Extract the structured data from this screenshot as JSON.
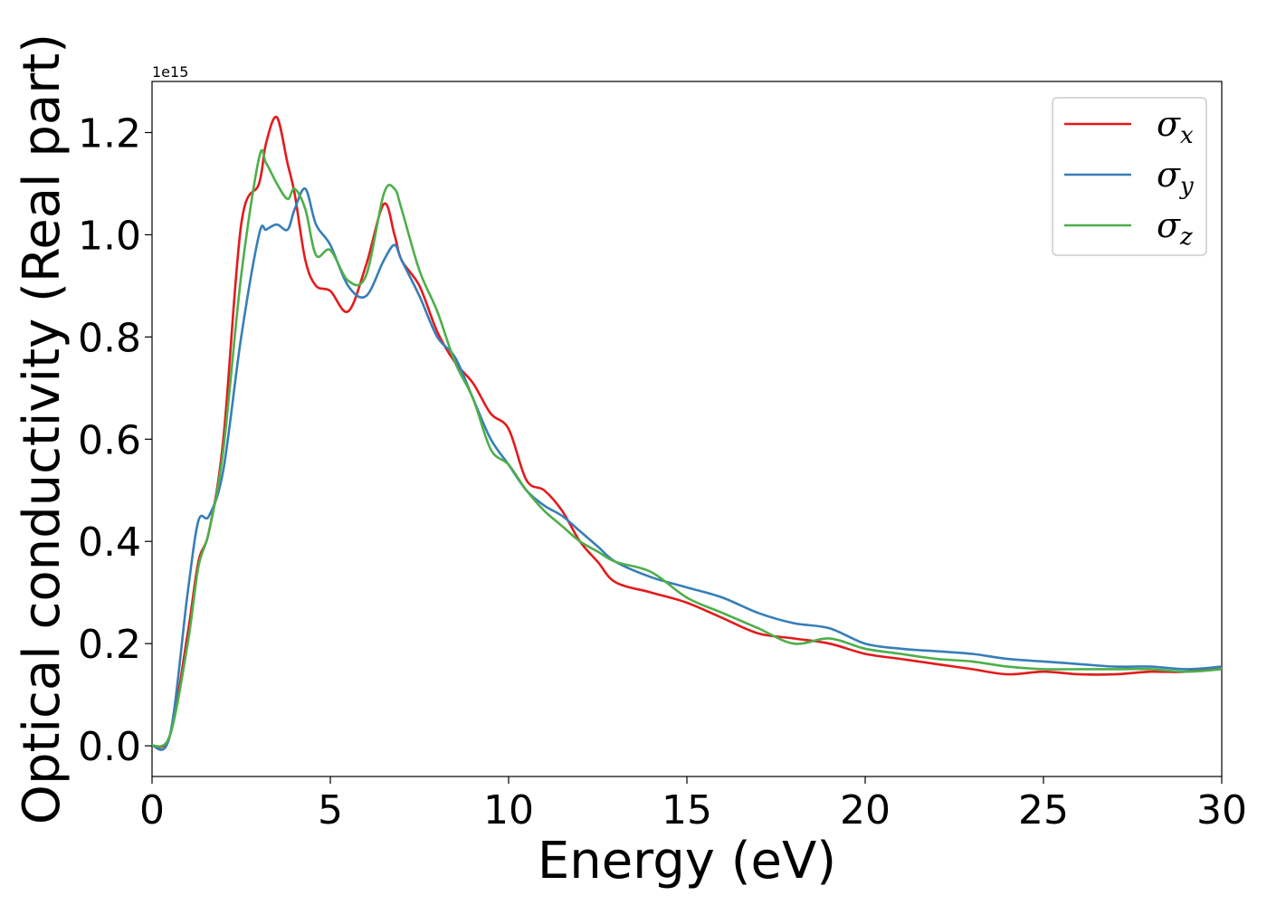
{
  "chart_data": {
    "type": "line",
    "title": "",
    "xlabel": "Energy (eV)",
    "ylabel": "Optical conductivity (Real part)",
    "y_offset_label": "1e15",
    "xlim": [
      0,
      30
    ],
    "ylim": [
      -0.06,
      1.3
    ],
    "x_ticks": [
      0,
      5,
      10,
      15,
      20,
      25,
      30
    ],
    "x_tick_labels": [
      "0",
      "5",
      "10",
      "15",
      "20",
      "25",
      "30"
    ],
    "y_ticks": [
      0.0,
      0.2,
      0.4,
      0.6,
      0.8,
      1.0,
      1.2
    ],
    "y_tick_labels": [
      "0.0",
      "0.2",
      "0.4",
      "0.6",
      "0.8",
      "1.0",
      "1.2"
    ],
    "grid": false,
    "legend_position": "top-right",
    "x": [
      0,
      0.5,
      1.0,
      1.3,
      1.6,
      2.0,
      2.5,
      3.0,
      3.2,
      3.5,
      3.8,
      4.0,
      4.3,
      4.6,
      5.0,
      5.5,
      6.0,
      6.5,
      6.8,
      7.0,
      7.5,
      8.0,
      8.5,
      9.0,
      9.5,
      10.0,
      10.5,
      11.0,
      11.5,
      12.0,
      12.5,
      13.0,
      14.0,
      15.0,
      16.0,
      17.0,
      18.0,
      19.0,
      20.0,
      21.0,
      22.0,
      23.0,
      24.0,
      25.0,
      26.0,
      27.0,
      28.0,
      29.0,
      30.0
    ],
    "series": [
      {
        "name": "σx",
        "color": "#e41a1c",
        "values": [
          0.0,
          0.02,
          0.22,
          0.36,
          0.42,
          0.6,
          1.02,
          1.1,
          1.18,
          1.23,
          1.14,
          1.08,
          0.95,
          0.9,
          0.89,
          0.85,
          0.94,
          1.06,
          1.0,
          0.95,
          0.9,
          0.81,
          0.75,
          0.71,
          0.65,
          0.62,
          0.52,
          0.5,
          0.46,
          0.4,
          0.36,
          0.32,
          0.3,
          0.28,
          0.25,
          0.22,
          0.21,
          0.2,
          0.18,
          0.17,
          0.16,
          0.15,
          0.14,
          0.145,
          0.14,
          0.14,
          0.145,
          0.145,
          0.155
        ]
      },
      {
        "name": "σy",
        "color": "#377eb8",
        "values": [
          0.0,
          0.02,
          0.3,
          0.44,
          0.45,
          0.54,
          0.8,
          1.0,
          1.01,
          1.02,
          1.01,
          1.05,
          1.09,
          1.02,
          0.98,
          0.9,
          0.88,
          0.95,
          0.98,
          0.95,
          0.88,
          0.8,
          0.76,
          0.68,
          0.6,
          0.55,
          0.5,
          0.47,
          0.45,
          0.42,
          0.39,
          0.36,
          0.33,
          0.31,
          0.29,
          0.26,
          0.24,
          0.23,
          0.2,
          0.19,
          0.185,
          0.18,
          0.17,
          0.165,
          0.16,
          0.155,
          0.155,
          0.15,
          0.155
        ]
      },
      {
        "name": "σz",
        "color": "#4daf4a",
        "values": [
          0.0,
          0.02,
          0.2,
          0.35,
          0.42,
          0.58,
          0.92,
          1.15,
          1.14,
          1.1,
          1.07,
          1.09,
          1.05,
          0.96,
          0.97,
          0.91,
          0.92,
          1.08,
          1.09,
          1.05,
          0.93,
          0.85,
          0.75,
          0.68,
          0.58,
          0.55,
          0.5,
          0.46,
          0.43,
          0.4,
          0.38,
          0.36,
          0.34,
          0.29,
          0.26,
          0.23,
          0.2,
          0.21,
          0.19,
          0.18,
          0.17,
          0.165,
          0.155,
          0.15,
          0.15,
          0.15,
          0.15,
          0.145,
          0.15
        ]
      }
    ]
  }
}
